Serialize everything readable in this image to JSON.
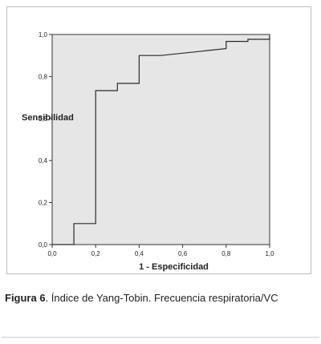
{
  "chart_data": {
    "type": "line",
    "line_style": "step",
    "title": "",
    "xlabel": "1 - Especificidad",
    "ylabel": "Sensibilidad",
    "xlim": [
      0,
      1
    ],
    "ylim": [
      0,
      1
    ],
    "x_ticks": [
      "0,0",
      "0,2",
      "0,4",
      "0,6",
      "0,8",
      "1,0"
    ],
    "x_ticks_minor": [
      "0,0",
      "0,2",
      "0,4",
      "0,6",
      "0,8",
      "1,0"
    ],
    "y_ticks": [
      "0,0",
      "0,2",
      "0,4",
      "0,6",
      "0,8",
      "1,0"
    ],
    "grid": false,
    "legend": "none",
    "colors": {
      "plot_background": "#e6e6e6",
      "line": "#2b2b2b",
      "axis": "#333333"
    },
    "series": [
      {
        "x": [
          0.0,
          0.1,
          0.1,
          0.2,
          0.2,
          0.3,
          0.3,
          0.4,
          0.4,
          0.5,
          0.8,
          0.8,
          0.9,
          0.9,
          1.0,
          1.0
        ],
        "y": [
          0.0,
          0.0,
          0.1,
          0.1,
          0.733,
          0.733,
          0.767,
          0.767,
          0.9,
          0.9,
          0.933,
          0.967,
          0.967,
          0.977,
          0.977,
          1.0
        ]
      }
    ]
  },
  "caption": {
    "label": "Figura 6",
    "text": ". Índice de Yang-Tobin. Frecuencia respiratoria/VC"
  }
}
